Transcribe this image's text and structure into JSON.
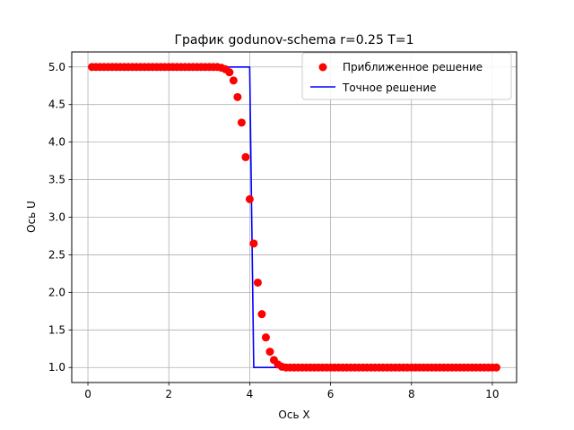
{
  "chart_data": {
    "type": "scatter",
    "title": "График godunov-schema r=0.25 T=1",
    "xlabel": "Ось X",
    "ylabel": "Ось U",
    "xlim": [
      -0.4,
      10.6
    ],
    "ylim": [
      0.8,
      5.2
    ],
    "xticks": [
      0,
      2,
      4,
      6,
      8,
      10
    ],
    "yticks": [
      1.0,
      1.5,
      2.0,
      2.5,
      3.0,
      3.5,
      4.0,
      4.5,
      5.0
    ],
    "xtick_labels": [
      "0",
      "2",
      "4",
      "6",
      "8",
      "10"
    ],
    "ytick_labels": [
      "1.0",
      "1.5",
      "2.0",
      "2.5",
      "3.0",
      "3.5",
      "4.0",
      "4.5",
      "5.0"
    ],
    "grid": true,
    "legend_position": "top-right",
    "series": [
      {
        "name": "Приближенное решение",
        "kind": "scatter",
        "color": "#ff0000",
        "x": [
          0.1,
          0.2,
          0.3,
          0.4,
          0.5,
          0.6,
          0.7,
          0.8,
          0.9,
          1.0,
          1.1,
          1.2,
          1.3,
          1.4,
          1.5,
          1.6,
          1.7,
          1.8,
          1.9,
          2.0,
          2.1,
          2.2,
          2.3,
          2.4,
          2.5,
          2.6,
          2.7,
          2.8,
          2.9,
          3.0,
          3.1,
          3.2,
          3.3,
          3.4,
          3.5,
          3.6,
          3.7,
          3.8,
          3.9,
          4.0,
          4.1,
          4.2,
          4.3,
          4.4,
          4.5,
          4.6,
          4.7,
          4.8,
          4.9,
          5.0,
          5.1,
          5.2,
          5.3,
          5.4,
          5.5,
          5.6,
          5.7,
          5.8,
          5.9,
          6.0,
          6.1,
          6.2,
          6.3,
          6.4,
          6.5,
          6.6,
          6.7,
          6.8,
          6.9,
          7.0,
          7.1,
          7.2,
          7.3,
          7.4,
          7.5,
          7.6,
          7.7,
          7.8,
          7.9,
          8.0,
          8.1,
          8.2,
          8.3,
          8.4,
          8.5,
          8.6,
          8.7,
          8.8,
          8.9,
          9.0,
          9.1,
          9.2,
          9.3,
          9.4,
          9.5,
          9.6,
          9.7,
          9.8,
          9.9,
          10.0,
          10.1
        ],
        "y": [
          5.0,
          5.0,
          5.0,
          5.0,
          5.0,
          5.0,
          5.0,
          5.0,
          5.0,
          5.0,
          5.0,
          5.0,
          5.0,
          5.0,
          5.0,
          5.0,
          5.0,
          5.0,
          5.0,
          5.0,
          5.0,
          5.0,
          5.0,
          5.0,
          5.0,
          5.0,
          5.0,
          5.0,
          5.0,
          5.0,
          5.0,
          5.0,
          4.99,
          4.97,
          4.93,
          4.82,
          4.6,
          4.26,
          3.8,
          3.24,
          2.65,
          2.13,
          1.71,
          1.4,
          1.21,
          1.1,
          1.04,
          1.01,
          1.0,
          1.0,
          1.0,
          1.0,
          1.0,
          1.0,
          1.0,
          1.0,
          1.0,
          1.0,
          1.0,
          1.0,
          1.0,
          1.0,
          1.0,
          1.0,
          1.0,
          1.0,
          1.0,
          1.0,
          1.0,
          1.0,
          1.0,
          1.0,
          1.0,
          1.0,
          1.0,
          1.0,
          1.0,
          1.0,
          1.0,
          1.0,
          1.0,
          1.0,
          1.0,
          1.0,
          1.0,
          1.0,
          1.0,
          1.0,
          1.0,
          1.0,
          1.0,
          1.0,
          1.0,
          1.0,
          1.0,
          1.0,
          1.0,
          1.0,
          1.0,
          1.0,
          1.0
        ]
      },
      {
        "name": "Точное решение",
        "kind": "line",
        "color": "#0000ff",
        "x": [
          0.1,
          4.0,
          4.1,
          10.1
        ],
        "y": [
          5.0,
          5.0,
          1.0,
          1.0
        ]
      }
    ]
  }
}
